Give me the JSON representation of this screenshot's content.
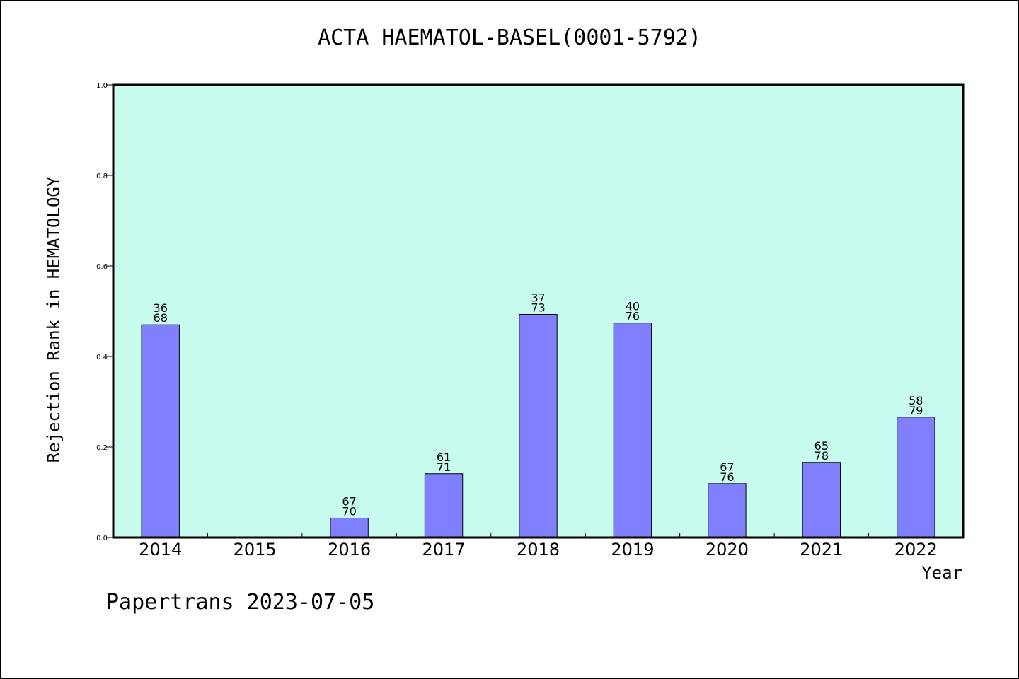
{
  "title": "ACTA HAEMATOL-BASEL(0001-5792)",
  "footer": "Papertrans 2023-07-05",
  "colors": {
    "plot_background": "#c8fcee",
    "bar_fill": "#8080ff",
    "bar_stroke": "#000000",
    "axis": "#000000"
  },
  "chart_data": {
    "type": "bar",
    "title": "ACTA HAEMATOL-BASEL(0001-5792)",
    "xlabel": "Year",
    "ylabel": "Rejection Rank in HEMATOLOGY",
    "ylim": [
      0,
      1.0
    ],
    "yticks": [
      "0.0",
      "0.2",
      "0.4",
      "0.6",
      "0.8",
      "1.0"
    ],
    "grid": false,
    "categories": [
      "2014",
      "2015",
      "2016",
      "2017",
      "2018",
      "2019",
      "2020",
      "2021",
      "2022"
    ],
    "values": [
      0.47,
      null,
      0.043,
      0.141,
      0.493,
      0.474,
      0.119,
      0.166,
      0.266
    ],
    "labels": [
      [
        "36",
        "68"
      ],
      null,
      [
        "67",
        "70"
      ],
      [
        "61",
        "71"
      ],
      [
        "37",
        "73"
      ],
      [
        "40",
        "76"
      ],
      [
        "67",
        "76"
      ],
      [
        "65",
        "78"
      ],
      [
        "58",
        "79"
      ]
    ]
  }
}
